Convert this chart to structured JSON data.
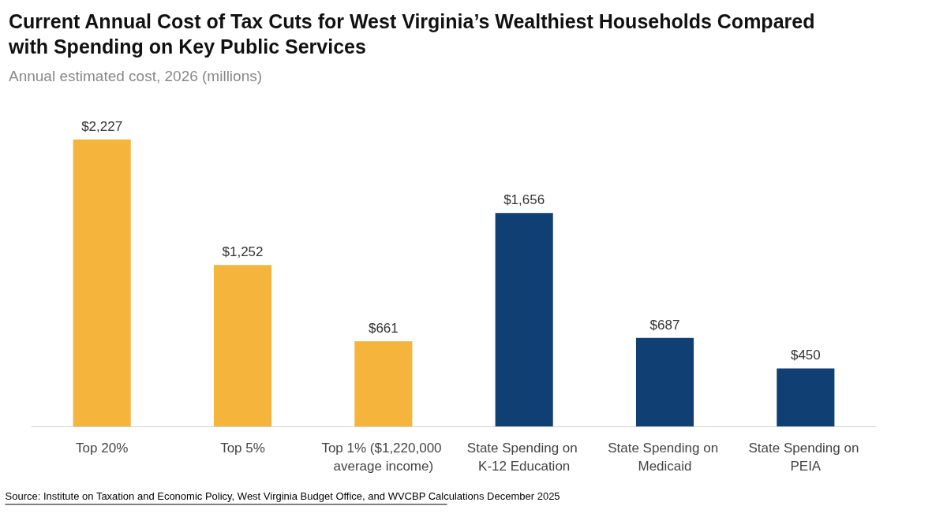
{
  "chart_data": {
    "type": "bar",
    "title": "Current Annual Cost of Tax Cuts for West Virginia’s Wealthiest Households Compared with Spending on Key Public Services",
    "subtitle": "Annual estimated cost, 2026 (millions)",
    "categories": [
      "Top 20%",
      "Top 5%",
      "Top 1% ($1,220,000 average income)",
      "State Spending on K-12 Education",
      "State Spending on Medicaid",
      "State Spending on PEIA"
    ],
    "values": [
      2227,
      1252,
      661,
      1656,
      687,
      450
    ],
    "colors": [
      "#f5b43c",
      "#f5b43c",
      "#f5b43c",
      "#103f73",
      "#103f73",
      "#103f73"
    ],
    "value_labels": [
      "$2,227",
      "$1,252",
      "$661",
      "$1,656",
      "$687",
      "$450"
    ],
    "annotations": [
      "Source: Institute on Taxation and Economic Policy, West Virginia Budget Office, and WVCBP Calculations December 2025"
    ],
    "data_labels": false
  }
}
